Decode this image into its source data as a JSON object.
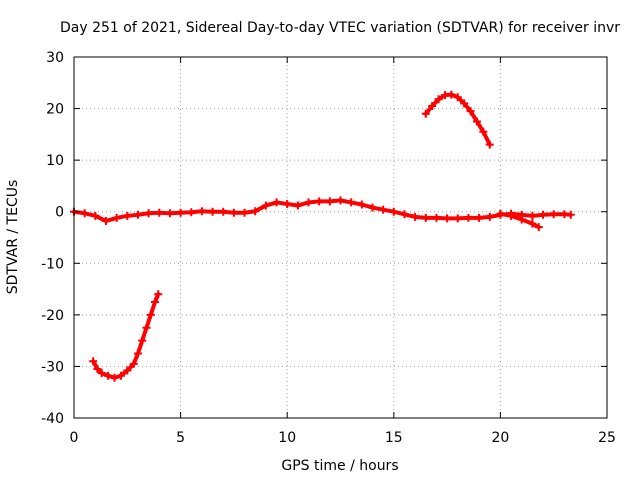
{
  "chart_data": {
    "type": "scatter",
    "title": "Day 251 of 2021, Sidereal Day-to-day VTEC variation (SDTVAR) for receiver invr",
    "xlabel": "GPS time / hours",
    "ylabel": "SDTVAR / TECUs",
    "xlim": [
      0,
      25
    ],
    "ylim": [
      -40,
      30
    ],
    "xticks": [
      0,
      5,
      10,
      15,
      20,
      25
    ],
    "yticks": [
      -40,
      -30,
      -20,
      -10,
      0,
      10,
      20,
      30
    ],
    "xtick_labels": [
      "0",
      "5",
      "10",
      "15",
      "20",
      "25"
    ],
    "ytick_labels": [
      "-40",
      "-30",
      "-20",
      "-10",
      "0",
      "10",
      "20",
      "30"
    ],
    "grid": true,
    "marker": "plus",
    "colors": {
      "series": "#ff0000",
      "grid": "#a0a0a0",
      "axis": "#000000"
    },
    "series": [
      {
        "name": "main-band",
        "x": [
          0.0,
          0.5,
          1.0,
          1.5,
          2.0,
          2.5,
          3.0,
          3.5,
          4.0,
          4.5,
          5.0,
          5.5,
          6.0,
          6.5,
          7.0,
          7.5,
          8.0,
          8.5,
          9.0,
          9.5,
          10.0,
          10.5,
          11.0,
          11.5,
          12.0,
          12.5,
          13.0,
          13.5,
          14.0,
          14.5,
          15.0,
          15.5,
          16.0,
          16.5,
          17.0,
          17.5,
          18.0,
          18.5,
          19.0,
          19.5,
          20.0,
          20.5,
          21.0,
          21.5,
          22.0,
          22.5,
          23.0,
          23.3
        ],
        "y": [
          0.0,
          -0.3,
          -0.8,
          -1.8,
          -1.2,
          -0.8,
          -0.6,
          -0.3,
          -0.2,
          -0.3,
          -0.2,
          -0.1,
          0.1,
          0.0,
          0.0,
          -0.2,
          -0.2,
          0.1,
          1.2,
          1.8,
          1.5,
          1.2,
          1.8,
          2.0,
          2.0,
          2.2,
          1.8,
          1.4,
          0.8,
          0.4,
          0.0,
          -0.5,
          -1.0,
          -1.2,
          -1.2,
          -1.3,
          -1.3,
          -1.2,
          -1.2,
          -1.0,
          -0.6,
          -0.4,
          -0.6,
          -0.8,
          -0.6,
          -0.5,
          -0.5,
          -0.6
        ]
      },
      {
        "name": "late-branch",
        "x": [
          20.0,
          20.5,
          21.0,
          21.5,
          21.8
        ],
        "y": [
          -0.4,
          -0.8,
          -1.5,
          -2.3,
          -3.0
        ]
      },
      {
        "name": "early-arc",
        "x": [
          0.9,
          1.1,
          1.3,
          1.6,
          1.9,
          2.2,
          2.5,
          2.8,
          3.0,
          3.2,
          3.4,
          3.6,
          3.8,
          3.95
        ],
        "y": [
          -29.0,
          -30.5,
          -31.3,
          -31.8,
          -32.2,
          -31.8,
          -30.8,
          -29.5,
          -27.5,
          -25.0,
          -22.5,
          -20.0,
          -17.5,
          -16.0
        ]
      },
      {
        "name": "late-arc",
        "x": [
          16.5,
          16.8,
          17.1,
          17.4,
          17.7,
          18.0,
          18.3,
          18.6,
          18.9,
          19.2,
          19.5
        ],
        "y": [
          19.0,
          20.5,
          21.8,
          22.6,
          22.7,
          22.2,
          21.0,
          19.5,
          17.5,
          15.5,
          13.0
        ]
      }
    ]
  }
}
